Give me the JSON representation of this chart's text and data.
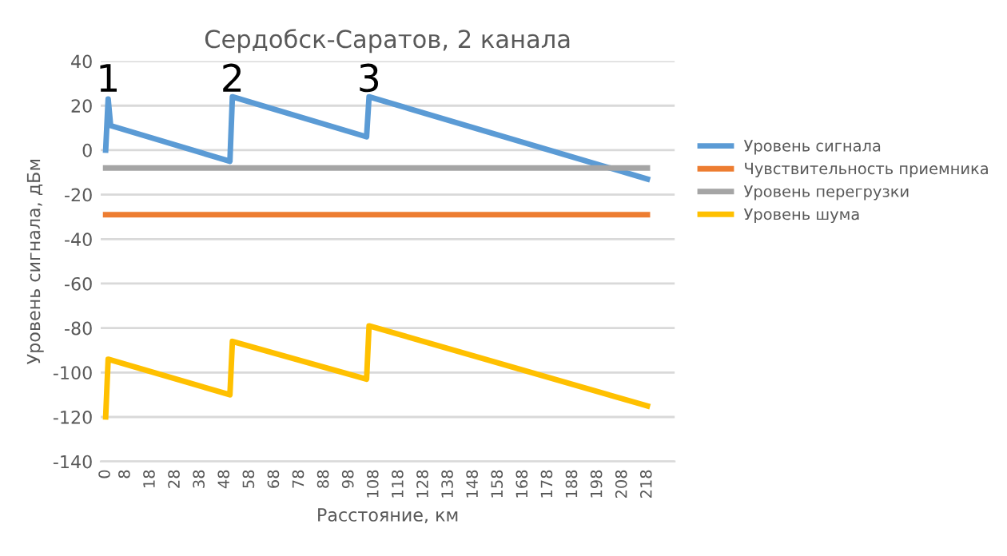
{
  "chart_data": {
    "type": "line",
    "title": "Сердобск-Саратов, 2 канала",
    "xlabel": "Расстояние, км",
    "ylabel": "Уровень сигнала, дБм",
    "series": [
      {
        "name": "Уровень сигнала",
        "color": "#5b9bd5",
        "x": [
          0,
          1,
          2,
          50,
          51,
          105,
          106,
          218
        ],
        "values": [
          0,
          23,
          11,
          -5,
          24,
          6,
          24,
          -13
        ]
      },
      {
        "name": "Чувствительность приемника",
        "color": "#ed7d31",
        "x": [
          0,
          218
        ],
        "values": [
          -29,
          -29
        ]
      },
      {
        "name": "Уровень перегрузки",
        "color": "#a5a5a5",
        "x": [
          0,
          218
        ],
        "values": [
          -8,
          -8
        ]
      },
      {
        "name": "Уровень шума",
        "color": "#ffc000",
        "x": [
          0,
          1,
          50,
          51,
          105,
          106,
          218
        ],
        "values": [
          -120,
          -94,
          -110,
          -86,
          -103,
          -79,
          -115
        ]
      }
    ],
    "annotations": [
      "1",
      "2",
      "3"
    ],
    "xlim": [
      -2,
      229
    ],
    "xticks": [
      0,
      8,
      18,
      28,
      38,
      48,
      58,
      68,
      78,
      88,
      98,
      108,
      118,
      128,
      138,
      148,
      158,
      168,
      178,
      188,
      198,
      208,
      218
    ],
    "ylim": [
      -140,
      40
    ],
    "yticks": [
      -140,
      -120,
      -100,
      -80,
      -60,
      -40,
      -20,
      0,
      20,
      40
    ],
    "grid": "y",
    "legend": "right"
  }
}
